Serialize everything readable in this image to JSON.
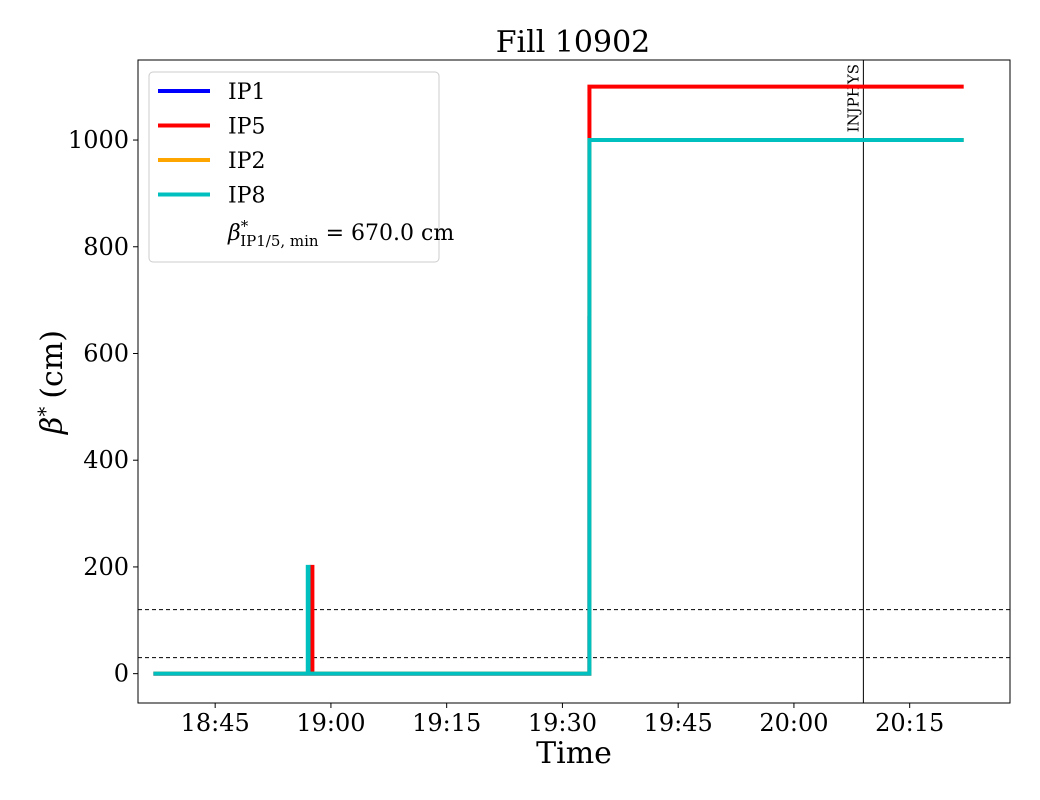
{
  "chart_data": {
    "type": "line",
    "title": "Fill 10902",
    "xlabel": "Time",
    "ylabel_symbol": "β",
    "ylabel_sup": "*",
    "ylabel_unit": "(cm)",
    "xlim": [
      "18:35",
      "20:28"
    ],
    "ylim": [
      -55,
      1150
    ],
    "x_ticks": [
      "18:45",
      "19:00",
      "19:15",
      "19:30",
      "19:45",
      "20:00",
      "20:15"
    ],
    "y_ticks": [
      0,
      200,
      400,
      600,
      800,
      1000
    ],
    "grid": false,
    "legend_position": "top-left",
    "series": [
      {
        "name": "IP1",
        "color": "#0000ff",
        "points": [
          [
            "18:37",
            0
          ],
          [
            "19:33.5",
            0
          ],
          [
            "19:33.5",
            670
          ]
        ]
      },
      {
        "name": "IP5",
        "color": "#ff0000",
        "points": [
          [
            "18:37",
            0
          ],
          [
            "18:57.5",
            0
          ],
          [
            "18:57.5",
            200
          ],
          [
            "18:57.6",
            200
          ],
          [
            "18:57.6",
            0
          ],
          [
            "19:33.5",
            0
          ],
          [
            "19:33.5",
            1100
          ],
          [
            "20:22",
            1100
          ]
        ]
      },
      {
        "name": "IP2",
        "color": "#ffa500",
        "points": [
          [
            "18:37",
            0
          ],
          [
            "19:33.5",
            0
          ],
          [
            "19:33.5",
            1000
          ],
          [
            "20:22",
            1000
          ]
        ]
      },
      {
        "name": "IP8",
        "color": "#00bfbf",
        "points": [
          [
            "18:37",
            0
          ],
          [
            "18:57",
            0
          ],
          [
            "18:57",
            200
          ],
          [
            "18:57.1",
            200
          ],
          [
            "18:57.1",
            0
          ],
          [
            "19:33.5",
            0
          ],
          [
            "19:33.5",
            1000
          ],
          [
            "20:22",
            1000
          ]
        ]
      }
    ],
    "legend_extra": {
      "symbol": "β",
      "sup": "*",
      "sub": "IP1/5, min",
      "value_text": " = 670.0 cm"
    },
    "reference_lines": {
      "horizontal": [
        30,
        120
      ],
      "vertical": [
        {
          "x": "20:09",
          "label": "INJPHYS"
        }
      ]
    }
  }
}
